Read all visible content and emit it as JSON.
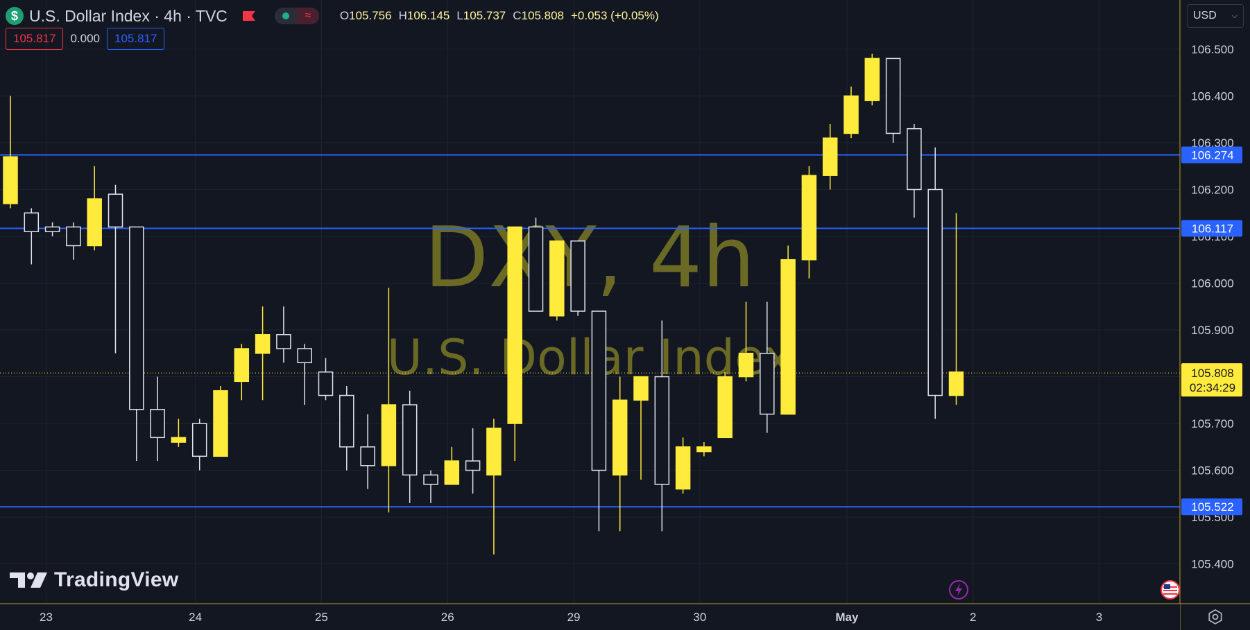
{
  "header": {
    "symbol_icon": "$",
    "title": "U.S. Dollar Index · 4h · TVC",
    "flag_icon": "red-flag-icon",
    "indicator_icons": [
      "green-dot-icon",
      "wave-icon"
    ],
    "wave_glyph": "≈",
    "ohlc": [
      {
        "k": "O",
        "v": "105.756"
      },
      {
        "k": "H",
        "v": "106.145"
      },
      {
        "k": "L",
        "v": "105.737"
      },
      {
        "k": "C",
        "v": "105.808"
      },
      {
        "k": "",
        "v": "+0.053 (+0.05%)"
      }
    ]
  },
  "quote": {
    "sell": "105.817",
    "spread": "0.000",
    "buy": "105.817"
  },
  "currency": {
    "label": "USD",
    "chevron": "⌵"
  },
  "watermark": {
    "symbol": "DXY, 4h",
    "name": "U.S. Dollar Index"
  },
  "branding": {
    "name": "TradingView"
  },
  "colors": {
    "background": "#131722",
    "bull": "#ffeb3b",
    "bear_fill": "#131722",
    "bear_border": "#e0e3eb",
    "level_line": "#2962ff",
    "last_price": "#ffeb3b",
    "watermark": "#6b6a25"
  },
  "chart_data": {
    "type": "candlestick",
    "y_axis": {
      "ticks": [
        "106.500",
        "106.400",
        "106.300",
        "106.200",
        "106.100",
        "106.000",
        "105.900",
        "105.800",
        "105.700",
        "105.600",
        "105.500",
        "105.400"
      ],
      "range": [
        105.315,
        106.605
      ]
    },
    "x_axis": {
      "labels": [
        {
          "label": "23",
          "index": 1.7
        },
        {
          "label": "24",
          "index": 8.8
        },
        {
          "label": "25",
          "index": 14.8
        },
        {
          "label": "26",
          "index": 20.8
        },
        {
          "label": "29",
          "index": 26.8
        },
        {
          "label": "30",
          "index": 32.8
        },
        {
          "label": "May",
          "index": 39.8,
          "bold": true
        },
        {
          "label": "2",
          "index": 45.8
        },
        {
          "label": "3",
          "index": 51.8
        }
      ]
    },
    "horizontal_levels": [
      "106.274",
      "106.117",
      "105.522"
    ],
    "last_price": {
      "value": "105.808",
      "countdown": "02:34:29"
    },
    "candles": [
      {
        "o": 106.17,
        "h": 106.4,
        "l": 106.16,
        "c": 106.27
      },
      {
        "o": 106.15,
        "h": 106.16,
        "l": 106.04,
        "c": 106.11
      },
      {
        "o": 106.12,
        "h": 106.13,
        "l": 106.1,
        "c": 106.11
      },
      {
        "o": 106.12,
        "h": 106.13,
        "l": 106.05,
        "c": 106.08
      },
      {
        "o": 106.08,
        "h": 106.25,
        "l": 106.07,
        "c": 106.18
      },
      {
        "o": 106.19,
        "h": 106.21,
        "l": 105.85,
        "c": 106.12
      },
      {
        "o": 106.12,
        "h": 106.12,
        "l": 105.62,
        "c": 105.73
      },
      {
        "o": 105.73,
        "h": 105.8,
        "l": 105.62,
        "c": 105.67
      },
      {
        "o": 105.66,
        "h": 105.71,
        "l": 105.65,
        "c": 105.67
      },
      {
        "o": 105.7,
        "h": 105.71,
        "l": 105.6,
        "c": 105.63
      },
      {
        "o": 105.63,
        "h": 105.78,
        "l": 105.63,
        "c": 105.77
      },
      {
        "o": 105.79,
        "h": 105.87,
        "l": 105.75,
        "c": 105.86
      },
      {
        "o": 105.85,
        "h": 105.95,
        "l": 105.75,
        "c": 105.89
      },
      {
        "o": 105.89,
        "h": 105.95,
        "l": 105.83,
        "c": 105.86
      },
      {
        "o": 105.86,
        "h": 105.87,
        "l": 105.74,
        "c": 105.83
      },
      {
        "o": 105.81,
        "h": 105.84,
        "l": 105.75,
        "c": 105.76
      },
      {
        "o": 105.76,
        "h": 105.78,
        "l": 105.6,
        "c": 105.65
      },
      {
        "o": 105.65,
        "h": 105.72,
        "l": 105.56,
        "c": 105.61
      },
      {
        "o": 105.61,
        "h": 105.99,
        "l": 105.51,
        "c": 105.74
      },
      {
        "o": 105.74,
        "h": 105.77,
        "l": 105.53,
        "c": 105.59
      },
      {
        "o": 105.59,
        "h": 105.6,
        "l": 105.53,
        "c": 105.57
      },
      {
        "o": 105.57,
        "h": 105.65,
        "l": 105.57,
        "c": 105.62
      },
      {
        "o": 105.62,
        "h": 105.69,
        "l": 105.55,
        "c": 105.6
      },
      {
        "o": 105.59,
        "h": 105.71,
        "l": 105.42,
        "c": 105.69
      },
      {
        "o": 105.7,
        "h": 106.12,
        "l": 105.62,
        "c": 106.12
      },
      {
        "o": 106.12,
        "h": 106.14,
        "l": 105.94,
        "c": 105.94
      },
      {
        "o": 105.93,
        "h": 106.09,
        "l": 105.92,
        "c": 106.09
      },
      {
        "o": 106.09,
        "h": 106.09,
        "l": 105.93,
        "c": 105.94
      },
      {
        "o": 105.94,
        "h": 105.94,
        "l": 105.47,
        "c": 105.6
      },
      {
        "o": 105.59,
        "h": 105.8,
        "l": 105.47,
        "c": 105.75
      },
      {
        "o": 105.75,
        "h": 105.8,
        "l": 105.58,
        "c": 105.8
      },
      {
        "o": 105.8,
        "h": 105.92,
        "l": 105.47,
        "c": 105.57
      },
      {
        "o": 105.56,
        "h": 105.67,
        "l": 105.55,
        "c": 105.65
      },
      {
        "o": 105.64,
        "h": 105.66,
        "l": 105.63,
        "c": 105.65
      },
      {
        "o": 105.67,
        "h": 105.81,
        "l": 105.67,
        "c": 105.8
      },
      {
        "o": 105.8,
        "h": 105.96,
        "l": 105.79,
        "c": 105.85
      },
      {
        "o": 105.85,
        "h": 105.96,
        "l": 105.68,
        "c": 105.72
      },
      {
        "o": 105.72,
        "h": 106.08,
        "l": 105.72,
        "c": 106.05
      },
      {
        "o": 106.05,
        "h": 106.25,
        "l": 106.01,
        "c": 106.23
      },
      {
        "o": 106.23,
        "h": 106.34,
        "l": 106.2,
        "c": 106.31
      },
      {
        "o": 106.32,
        "h": 106.42,
        "l": 106.31,
        "c": 106.4
      },
      {
        "o": 106.39,
        "h": 106.49,
        "l": 106.38,
        "c": 106.48
      },
      {
        "o": 106.48,
        "h": 106.48,
        "l": 106.3,
        "c": 106.32
      },
      {
        "o": 106.33,
        "h": 106.34,
        "l": 106.14,
        "c": 106.2
      },
      {
        "o": 106.2,
        "h": 106.29,
        "l": 105.71,
        "c": 105.76
      },
      {
        "o": 105.76,
        "h": 106.15,
        "l": 105.74,
        "c": 105.81
      }
    ]
  }
}
